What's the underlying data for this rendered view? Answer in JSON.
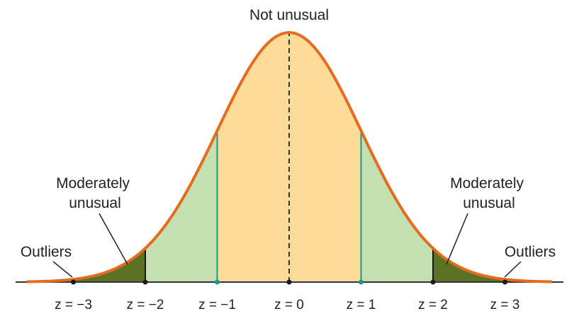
{
  "labels": {
    "center": "Not unusual",
    "moderate_left": [
      "Moderately",
      "unusual"
    ],
    "moderate_right": [
      "Moderately",
      "unusual"
    ],
    "outliers_left": "Outliers",
    "outliers_right": "Outliers"
  },
  "chart_data": {
    "type": "area",
    "x_range": [
      -3,
      3
    ],
    "tick_labels": [
      "z = −3",
      "z = −2",
      "z = −1",
      "z = 0",
      "z = 1",
      "z = 2",
      "z = 3"
    ],
    "ticks": [
      -3,
      -2,
      -1,
      0,
      1,
      2,
      3
    ],
    "regions": [
      {
        "from": -1,
        "to": 1,
        "color": "#fddc99"
      },
      {
        "from": -2,
        "to": -1,
        "color": "#c4e0b1"
      },
      {
        "from": 1,
        "to": 2,
        "color": "#c4e0b1"
      },
      {
        "from": -4,
        "to": -2,
        "color": "#5b7225"
      },
      {
        "from": 2,
        "to": 4,
        "color": "#5b7225"
      }
    ],
    "curve_color": "#e56b1f",
    "center_line": "dashed"
  }
}
